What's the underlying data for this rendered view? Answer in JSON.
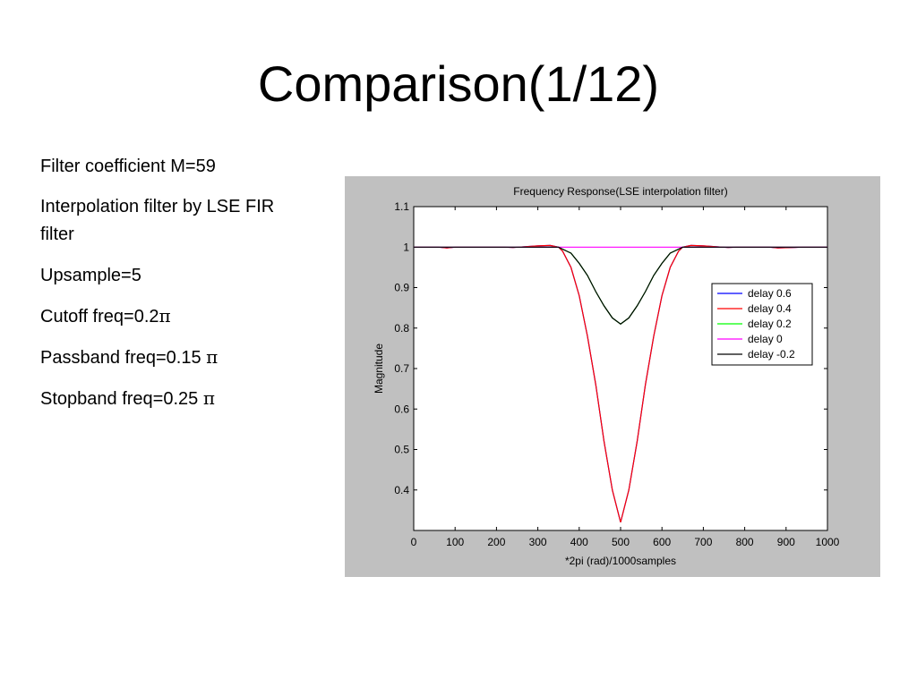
{
  "slide": {
    "title": "Comparison(1/12)",
    "bullets": [
      {
        "text": "Filter coefficient M=59",
        "symbol": ""
      },
      {
        "text": "Interpolation filter by LSE FIR filter",
        "symbol": ""
      },
      {
        "text": "Upsample=5",
        "symbol": ""
      },
      {
        "text": "Cutoff freq=0.2",
        "symbol": "π"
      },
      {
        "text": "Passband freq=0.15 ",
        "symbol": "π"
      },
      {
        "text": "Stopband freq=0.25 ",
        "symbol": "π"
      }
    ]
  },
  "chart_data": {
    "type": "line",
    "title": "Frequency Response(LSE interpolation filter)",
    "xlabel": "*2pi (rad)/1000samples",
    "ylabel": "Magnitude",
    "xlim": [
      0,
      1000
    ],
    "ylim": [
      0.3,
      1.1
    ],
    "xticks": [
      0,
      100,
      200,
      300,
      400,
      500,
      600,
      700,
      800,
      900,
      1000
    ],
    "yticks": [
      0.4,
      0.5,
      0.6,
      0.7,
      0.8,
      0.9,
      1,
      1.1
    ],
    "grid": false,
    "legend_position": "top-right",
    "background_color": "#c0c0c0",
    "series": [
      {
        "name": "delay 0.6",
        "color": "#0000ff",
        "x": [
          0,
          60,
          80,
          100,
          150,
          220,
          240,
          300,
          330,
          350,
          360,
          380,
          400,
          420,
          440,
          460,
          480,
          500,
          520,
          540,
          560,
          580,
          600,
          620,
          640,
          650,
          670,
          700,
          760,
          780,
          860,
          880,
          940,
          1000
        ],
        "y": [
          1.0,
          1.0,
          0.998,
          1.0,
          1.0,
          1.0,
          0.999,
          1.003,
          1.004,
          1.0,
          0.99,
          0.95,
          0.88,
          0.78,
          0.66,
          0.52,
          0.4,
          0.32,
          0.4,
          0.52,
          0.66,
          0.78,
          0.88,
          0.95,
          0.99,
          1.0,
          1.004,
          1.003,
          0.999,
          1.0,
          1.0,
          0.998,
          1.0,
          1.0
        ]
      },
      {
        "name": "delay 0.4",
        "color": "#ff0000",
        "x": [
          0,
          60,
          80,
          100,
          150,
          220,
          240,
          300,
          330,
          350,
          360,
          380,
          400,
          420,
          440,
          460,
          480,
          500,
          520,
          540,
          560,
          580,
          600,
          620,
          640,
          650,
          670,
          700,
          760,
          780,
          860,
          880,
          940,
          1000
        ],
        "y": [
          1.0,
          1.0,
          0.998,
          1.0,
          1.0,
          1.0,
          0.999,
          1.003,
          1.004,
          1.0,
          0.99,
          0.95,
          0.88,
          0.78,
          0.66,
          0.52,
          0.4,
          0.32,
          0.4,
          0.52,
          0.66,
          0.78,
          0.88,
          0.95,
          0.99,
          1.0,
          1.004,
          1.003,
          0.999,
          1.0,
          1.0,
          0.998,
          1.0,
          1.0
        ]
      },
      {
        "name": "delay 0.2",
        "color": "#00ff00",
        "x": [
          0,
          350,
          380,
          400,
          420,
          440,
          460,
          480,
          500,
          520,
          540,
          560,
          580,
          600,
          620,
          650,
          1000
        ],
        "y": [
          1.0,
          1.0,
          0.985,
          0.96,
          0.93,
          0.89,
          0.855,
          0.825,
          0.81,
          0.825,
          0.855,
          0.89,
          0.93,
          0.96,
          0.985,
          1.0,
          1.0
        ]
      },
      {
        "name": "delay 0",
        "color": "#ff00ff",
        "x": [
          0,
          1000
        ],
        "y": [
          1.0,
          1.0
        ]
      },
      {
        "name": "delay -0.2",
        "color": "#000000",
        "x": [
          0,
          350,
          380,
          400,
          420,
          440,
          460,
          480,
          500,
          520,
          540,
          560,
          580,
          600,
          620,
          650,
          1000
        ],
        "y": [
          1.0,
          1.0,
          0.985,
          0.96,
          0.93,
          0.89,
          0.855,
          0.825,
          0.81,
          0.825,
          0.855,
          0.89,
          0.93,
          0.96,
          0.985,
          1.0,
          1.0
        ]
      }
    ]
  }
}
